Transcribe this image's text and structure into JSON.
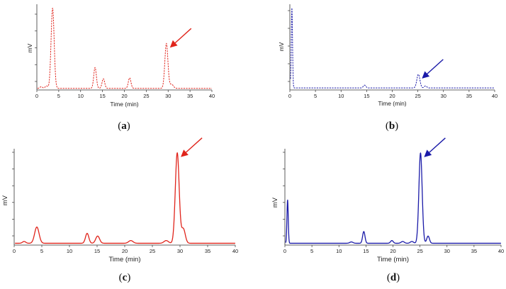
{
  "chart_data": [
    {
      "type": "line",
      "panel": "a",
      "caption": {
        "open": "(",
        "letter": "a",
        "close": ")"
      },
      "xlabel": "Time (min)",
      "ylabel": "mV",
      "xlim": [
        0,
        40
      ],
      "ylim": [
        0,
        1.05
      ],
      "x_ticks": [
        "0",
        "5",
        "10",
        "15",
        "20",
        "25",
        "30",
        "35",
        "40"
      ],
      "line_style": "dashed",
      "color": "#e0241b",
      "baseline": 0.02,
      "peaks": [
        {
          "t": 3.6,
          "h": 1.0,
          "w": 0.35
        },
        {
          "t": 13.3,
          "h": 0.26,
          "w": 0.3
        },
        {
          "t": 15.2,
          "h": 0.12,
          "w": 0.3
        },
        {
          "t": 21.2,
          "h": 0.13,
          "w": 0.3
        },
        {
          "t": 29.6,
          "h": 0.56,
          "w": 0.35
        }
      ],
      "noise": [
        {
          "t": 1.0,
          "h": 0.02,
          "w": 0.3
        },
        {
          "t": 2.2,
          "h": 0.03,
          "w": 0.3
        },
        {
          "t": 30.8,
          "h": 0.05,
          "w": 0.4
        }
      ],
      "annotation": {
        "label": "peak-arrow",
        "t": 29.6,
        "color": "#e0241b"
      }
    },
    {
      "type": "line",
      "panel": "b",
      "caption": {
        "open": "(",
        "letter": "b",
        "close": ")"
      },
      "xlabel": "Time (min)",
      "ylabel": "mV",
      "xlim": [
        0,
        40
      ],
      "ylim": [
        0,
        1.05
      ],
      "x_ticks": [
        "0",
        "5",
        "10",
        "15",
        "20",
        "25",
        "30",
        "35",
        "40"
      ],
      "line_style": "dashed",
      "color": "#1a1aa8",
      "baseline": 0.025,
      "peaks": [
        {
          "t": 0.4,
          "h": 1.0,
          "w": 0.12
        },
        {
          "t": 25.1,
          "h": 0.17,
          "w": 0.3
        }
      ],
      "noise": [
        {
          "t": 14.6,
          "h": 0.035,
          "w": 0.25
        },
        {
          "t": 26.5,
          "h": 0.025,
          "w": 0.25
        }
      ],
      "annotation": {
        "label": "peak-arrow",
        "t": 25.1,
        "color": "#1a1aa8"
      }
    },
    {
      "type": "line",
      "panel": "c",
      "caption": {
        "open": "(",
        "letter": "c",
        "close": ")"
      },
      "xlabel": "Time (min)",
      "ylabel": "mV",
      "xlim": [
        0,
        40
      ],
      "ylim": [
        0,
        1.05
      ],
      "x_ticks": [
        "0",
        "5",
        "10",
        "15",
        "20",
        "25",
        "30",
        "35",
        "40"
      ],
      "line_style": "solid",
      "color": "#e0241b",
      "baseline": 0.02,
      "peaks": [
        {
          "t": 4.1,
          "h": 0.18,
          "w": 0.4
        },
        {
          "t": 13.2,
          "h": 0.11,
          "w": 0.3
        },
        {
          "t": 15.1,
          "h": 0.08,
          "w": 0.35
        },
        {
          "t": 21.1,
          "h": 0.03,
          "w": 0.4
        },
        {
          "t": 29.5,
          "h": 1.0,
          "w": 0.35
        },
        {
          "t": 30.6,
          "h": 0.16,
          "w": 0.35
        }
      ],
      "noise": [
        {
          "t": 1.8,
          "h": 0.02,
          "w": 0.3
        },
        {
          "t": 27.5,
          "h": 0.03,
          "w": 0.4
        }
      ],
      "annotation": {
        "label": "peak-arrow",
        "t": 29.5,
        "color": "#e0241b"
      }
    },
    {
      "type": "line",
      "panel": "d",
      "caption": {
        "open": "(",
        "letter": "d",
        "close": ")"
      },
      "xlabel": "Time (min)",
      "ylabel": "mV",
      "xlim": [
        0,
        40
      ],
      "ylim": [
        0,
        1.05
      ],
      "x_ticks": [
        "0",
        "5",
        "10",
        "15",
        "20",
        "25",
        "30",
        "35",
        "40"
      ],
      "line_style": "solid",
      "color": "#1a1aa8",
      "baseline": 0.02,
      "peaks": [
        {
          "t": 0.5,
          "h": 0.48,
          "w": 0.12
        },
        {
          "t": 14.6,
          "h": 0.13,
          "w": 0.22
        },
        {
          "t": 19.8,
          "h": 0.03,
          "w": 0.25
        },
        {
          "t": 25.1,
          "h": 1.0,
          "w": 0.3
        },
        {
          "t": 26.5,
          "h": 0.08,
          "w": 0.25
        }
      ],
      "noise": [
        {
          "t": 12.3,
          "h": 0.015,
          "w": 0.3
        },
        {
          "t": 21.8,
          "h": 0.02,
          "w": 0.3
        },
        {
          "t": 23.5,
          "h": 0.02,
          "w": 0.3
        }
      ],
      "annotation": {
        "label": "peak-arrow",
        "t": 25.1,
        "color": "#1a1aa8"
      }
    }
  ]
}
